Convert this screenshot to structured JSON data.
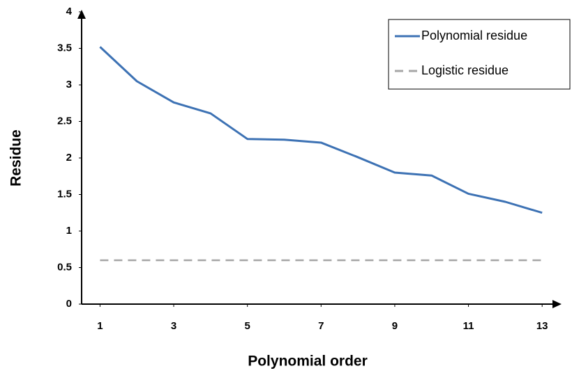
{
  "chart_data": {
    "type": "line",
    "x_label": "Polynomial order",
    "y_label": "Residue",
    "x": [
      1,
      2,
      3,
      4,
      5,
      6,
      7,
      8,
      9,
      10,
      11,
      12,
      13
    ],
    "series": [
      {
        "name": "Polynomial residue",
        "color": "#3d72b4",
        "dashed": false,
        "values": [
          3.52,
          3.05,
          2.76,
          2.61,
          2.26,
          2.25,
          2.21,
          2.01,
          1.8,
          1.76,
          1.51,
          1.4,
          1.25
        ]
      },
      {
        "name": "Logistic residue",
        "color": "#a6a6a6",
        "dashed": true,
        "values": [
          0.6,
          0.6,
          0.6,
          0.6,
          0.6,
          0.6,
          0.6,
          0.6,
          0.6,
          0.6,
          0.6,
          0.6,
          0.6
        ]
      }
    ],
    "xlim": [
      0.5,
      13.5
    ],
    "xticks": [
      1,
      3,
      5,
      7,
      9,
      11,
      13
    ],
    "ylim": [
      0,
      4
    ],
    "yticks": [
      0,
      0.5,
      1,
      1.5,
      2,
      2.5,
      3,
      3.5,
      4
    ],
    "grid": false,
    "legend": "upper right"
  }
}
